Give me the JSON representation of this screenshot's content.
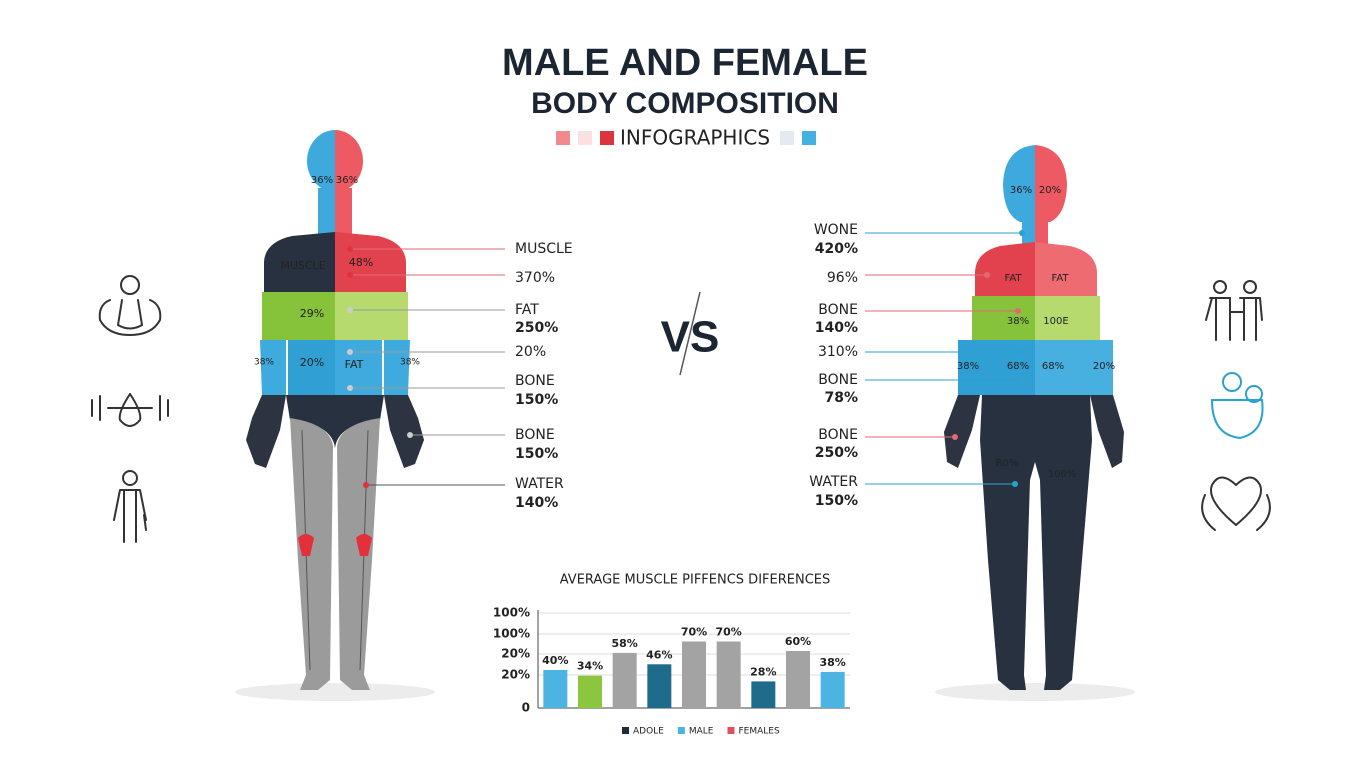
{
  "header": {
    "title": "MALE AND FEMALE",
    "subtitle": "BODY COMPOSITION",
    "tag": "INFOGRAPHICS"
  },
  "vs": "VS",
  "male": {
    "head_labels": [
      "36%",
      "36%"
    ],
    "body_labels": [
      "MUSCLE",
      "48%",
      "29%",
      "20%",
      "FAT",
      "38%",
      "38%"
    ],
    "callouts": [
      [
        "MUSCLE"
      ],
      [
        "370%"
      ],
      [
        "FAT",
        "250%"
      ],
      [
        "20%"
      ],
      [
        "BONE",
        "150%"
      ],
      [
        "BONE",
        "150%"
      ],
      [
        "WATER",
        "140%"
      ]
    ]
  },
  "female": {
    "head_labels": [
      "36%",
      "20%"
    ],
    "body_labels": [
      "FAT",
      "FAT",
      "38%",
      "100E",
      "38%",
      "68%",
      "68%",
      "20%",
      "R0%",
      "100%"
    ],
    "callouts": [
      [
        "WONE",
        "420%"
      ],
      [
        "96%"
      ],
      [
        "BONE",
        "140%"
      ],
      [
        "310%"
      ],
      [
        "BONE",
        "78%"
      ],
      [
        "BONE",
        "250%"
      ],
      [
        "WATER",
        "150%"
      ]
    ]
  },
  "chart": {
    "title": "AVERAGE MUSCLE PIFFENCS DIFERENCES",
    "ytick_labels": [
      "100%",
      "100%",
      "20%",
      "20%",
      "0"
    ],
    "ylim": [
      0,
      100
    ],
    "values": [
      40,
      34,
      58,
      46,
      70,
      70,
      28,
      60,
      38
    ],
    "value_labels": [
      "40%",
      "34%",
      "58%",
      "46%",
      "70%",
      "70%",
      "28%",
      "60%",
      "38%"
    ],
    "colors": [
      "#4cb4e2",
      "#8cc63f",
      "#a3a3a3",
      "#1f6b8c",
      "#a3a3a3",
      "#a3a3a3",
      "#1f6b8c",
      "#a3a3a3",
      "#4cb4e2"
    ],
    "legend": [
      {
        "name": "ADOLE",
        "color": "#1f2b3a"
      },
      {
        "name": "MALE",
        "color": "#4cb4e2"
      },
      {
        "name": "FEMALES",
        "color": "#e0505c"
      }
    ]
  }
}
